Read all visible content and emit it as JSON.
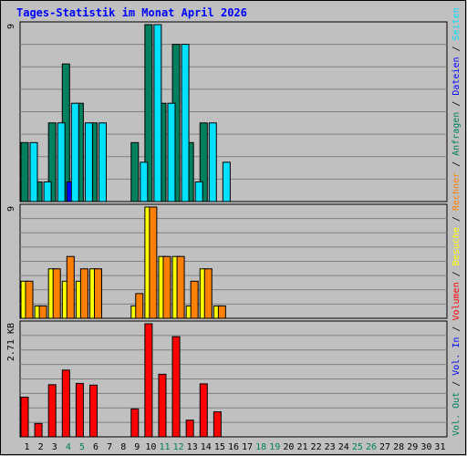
{
  "chart_data": {
    "type": "bar",
    "title": "Tages-Statistik im Monat April 2026",
    "categories": [
      "1",
      "2",
      "3",
      "4",
      "5",
      "6",
      "7",
      "8",
      "9",
      "10",
      "11",
      "12",
      "13",
      "14",
      "15",
      "16",
      "17",
      "18",
      "19",
      "20",
      "21",
      "22",
      "23",
      "24",
      "25",
      "26",
      "27",
      "28",
      "29",
      "30",
      "31"
    ],
    "weekend_days": [
      "4",
      "5",
      "11",
      "12",
      "18",
      "19",
      "25",
      "26"
    ],
    "grid": true,
    "legend_placement": "right (vertical)",
    "panels": [
      {
        "id": "top",
        "ymax_label": "9",
        "ylim": [
          0,
          9
        ],
        "series": [
          {
            "name": "Anfragen",
            "color": "#00805c",
            "values": [
              3,
              1,
              4,
              7,
              5,
              4,
              0,
              0,
              3,
              9,
              5,
              8,
              3,
              4,
              0,
              0,
              0,
              0,
              0,
              0,
              0,
              0,
              0,
              0,
              0,
              0,
              0,
              0,
              0,
              0,
              0
            ]
          },
          {
            "name": "Dateien",
            "color": "#0000ff",
            "values": [
              0,
              0,
              0,
              1,
              0,
              0,
              0,
              0,
              0,
              0,
              0,
              0,
              0,
              0,
              0,
              0,
              0,
              0,
              0,
              0,
              0,
              0,
              0,
              0,
              0,
              0,
              0,
              0,
              0,
              0,
              0
            ]
          },
          {
            "name": "Seiten",
            "color": "#00e0ff",
            "values": [
              3,
              1,
              4,
              5,
              4,
              4,
              0,
              0,
              2,
              9,
              5,
              8,
              1,
              4,
              2,
              0,
              0,
              0,
              0,
              0,
              0,
              0,
              0,
              0,
              0,
              0,
              0,
              0,
              0,
              0,
              0
            ]
          }
        ]
      },
      {
        "id": "middle",
        "ymax_label": "9",
        "ylim": [
          0,
          9
        ],
        "series": [
          {
            "name": "Besuche",
            "color": "#ffff00",
            "values": [
              3,
              1,
              4,
              3,
              3,
              4,
              0,
              0,
              1,
              9,
              5,
              5,
              1,
              4,
              1,
              0,
              0,
              0,
              0,
              0,
              0,
              0,
              0,
              0,
              0,
              0,
              0,
              0,
              0,
              0,
              0
            ]
          },
          {
            "name": "Rechner",
            "color": "#ff8000",
            "values": [
              3,
              1,
              4,
              5,
              4,
              4,
              0,
              0,
              2,
              9,
              5,
              5,
              3,
              4,
              1,
              0,
              0,
              0,
              0,
              0,
              0,
              0,
              0,
              0,
              0,
              0,
              0,
              0,
              0,
              0,
              0
            ]
          }
        ]
      },
      {
        "id": "bottom",
        "ymax_label": "2.71 KB",
        "ylim": [
          0,
          2.71
        ],
        "series": [
          {
            "name": "Volumen",
            "color": "#ff0000",
            "values": [
              0.95,
              0.32,
              1.25,
              1.6,
              1.28,
              1.24,
              0,
              0,
              0.67,
              2.71,
              1.5,
              2.4,
              0.4,
              1.27,
              0.6,
              0,
              0,
              0,
              0,
              0,
              0,
              0,
              0,
              0,
              0,
              0,
              0,
              0,
              0,
              0,
              0
            ]
          }
        ]
      }
    ],
    "legend": {
      "top": [
        {
          "text": "Anfragen",
          "color": "#00805c"
        },
        {
          "text": "Dateien",
          "color": "#0000ff"
        },
        {
          "text": "Seiten",
          "color": "#00e0ff"
        }
      ],
      "middle": [
        {
          "text": "Besuche",
          "color": "#ffff00"
        },
        {
          "text": "Rechner",
          "color": "#ff8000"
        }
      ],
      "bottom": [
        {
          "text": "Vol. Out",
          "color": "#00805c"
        },
        {
          "text": "Vol. In",
          "color": "#0000ff"
        },
        {
          "text": "Volumen",
          "color": "#ff0000"
        }
      ],
      "separator": "/"
    }
  }
}
